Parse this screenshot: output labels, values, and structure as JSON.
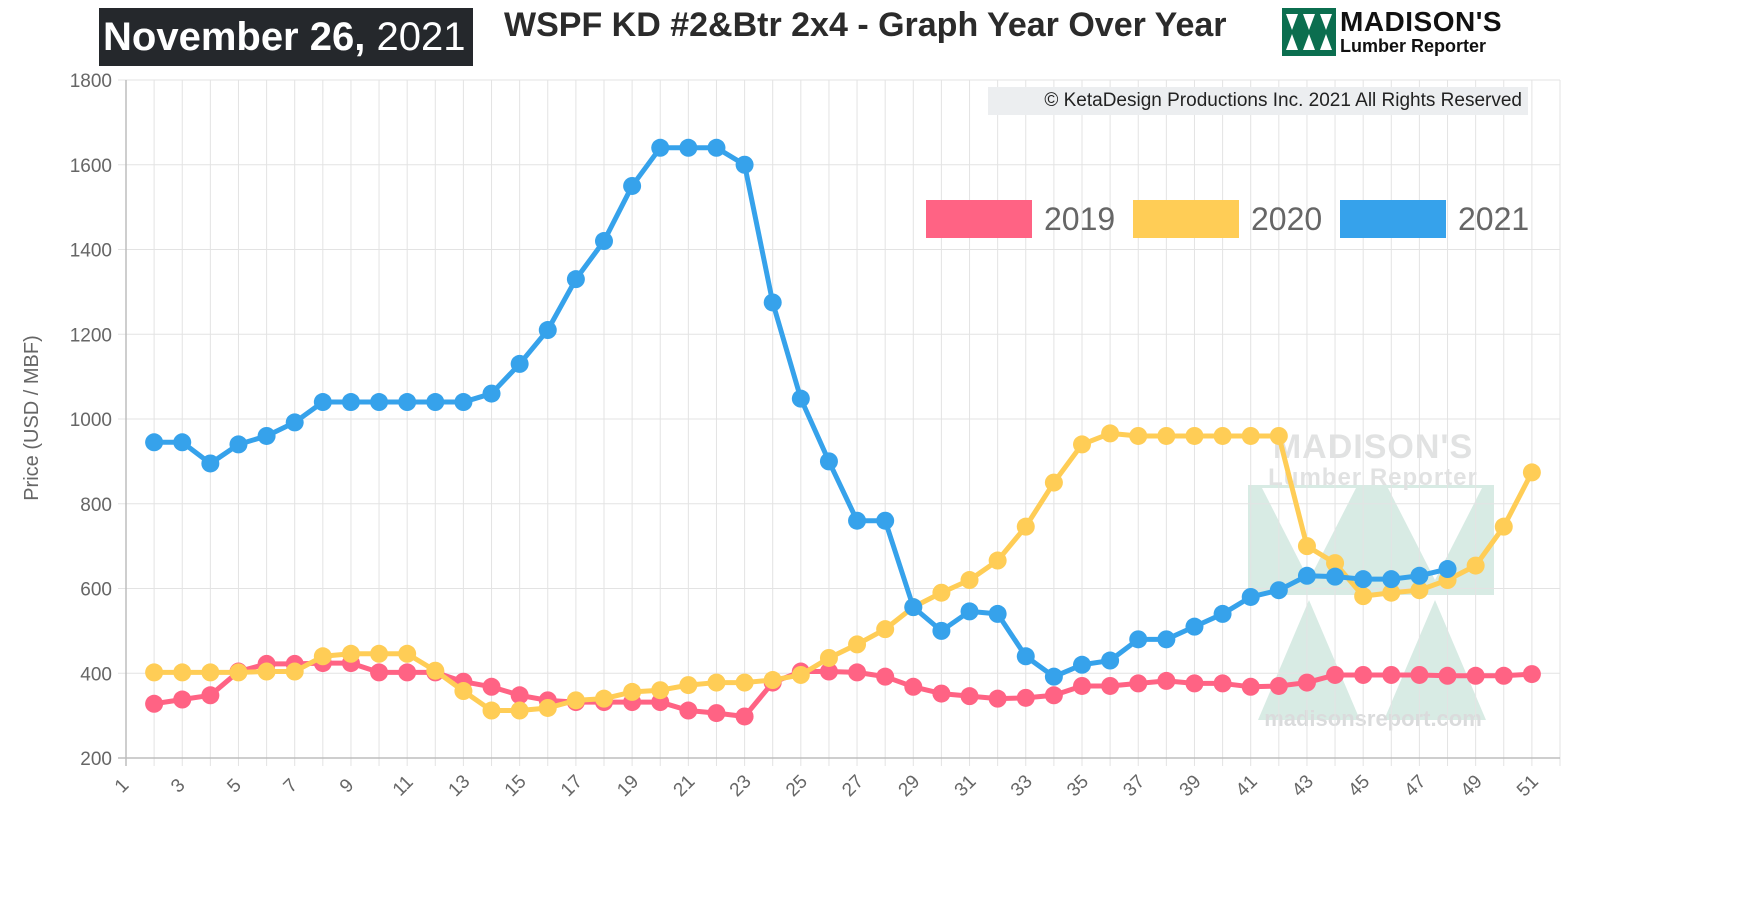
{
  "header": {
    "date_bold": "November 26,",
    "date_year": "2021",
    "title": "WSPF KD #2&Btr 2x4 - Graph Year Over Year",
    "logo_line1": "MADISON'S",
    "logo_line2": "Lumber Reporter",
    "copyright": "© KetaDesign Productions Inc. 2021 All Rights Reserved"
  },
  "watermark": {
    "line1": "MADISON'S",
    "line2": "Lumber Reporter",
    "url": "madisonsreport.com"
  },
  "colors": {
    "s2019": "#ff6384",
    "s2020": "#ffcd56",
    "s2021": "#36a2eb",
    "logo_green": "#0b6e4f",
    "watermark_green": "#b9dccf"
  },
  "chart_data": {
    "type": "line",
    "ylabel": "Price (USD / MBF)",
    "xlabel": "",
    "xlim": [
      1,
      52
    ],
    "ylim": [
      200,
      1800
    ],
    "yticks": [
      200,
      400,
      600,
      800,
      1000,
      1200,
      1400,
      1600,
      1800
    ],
    "xticks": [
      1,
      3,
      5,
      7,
      9,
      11,
      13,
      15,
      17,
      19,
      21,
      23,
      25,
      27,
      29,
      31,
      33,
      35,
      37,
      39,
      41,
      43,
      45,
      47,
      49,
      51
    ],
    "grid": true,
    "legend_position": "top-right",
    "series": [
      {
        "name": "2019",
        "x": [
          2,
          3,
          4,
          5,
          6,
          7,
          8,
          9,
          10,
          11,
          12,
          13,
          14,
          15,
          16,
          17,
          18,
          19,
          20,
          21,
          22,
          23,
          24,
          25,
          26,
          27,
          28,
          29,
          30,
          31,
          32,
          33,
          34,
          35,
          36,
          37,
          38,
          39,
          40,
          41,
          42,
          43,
          44,
          45,
          46,
          47,
          48,
          49,
          50,
          51
        ],
        "values": [
          328,
          338,
          348,
          404,
          422,
          422,
          424,
          424,
          402,
          402,
          402,
          380,
          368,
          348,
          336,
          332,
          332,
          332,
          332,
          312,
          306,
          298,
          378,
          404,
          404,
          402,
          392,
          368,
          352,
          346,
          340,
          342,
          348,
          370,
          370,
          376,
          382,
          376,
          376,
          368,
          370,
          378,
          396,
          396,
          396,
          396,
          394,
          394,
          394,
          398
        ]
      },
      {
        "name": "2020",
        "x": [
          2,
          3,
          4,
          5,
          6,
          7,
          8,
          9,
          10,
          11,
          12,
          13,
          14,
          15,
          16,
          17,
          18,
          19,
          20,
          21,
          22,
          23,
          24,
          25,
          26,
          27,
          28,
          29,
          30,
          31,
          32,
          33,
          34,
          35,
          36,
          37,
          38,
          39,
          40,
          41,
          42,
          43,
          44,
          45,
          46,
          47,
          48,
          49,
          50,
          51
        ],
        "values": [
          402,
          402,
          402,
          402,
          404,
          404,
          440,
          446,
          446,
          446,
          406,
          358,
          312,
          312,
          318,
          336,
          340,
          356,
          360,
          372,
          378,
          378,
          384,
          396,
          436,
          468,
          504,
          556,
          590,
          620,
          666,
          746,
          850,
          940,
          966,
          960,
          960,
          960,
          960,
          960,
          960,
          700,
          660,
          582,
          590,
          596,
          620,
          654,
          746,
          874
        ]
      },
      {
        "name": "2021",
        "x": [
          2,
          3,
          4,
          5,
          6,
          7,
          8,
          9,
          10,
          11,
          12,
          13,
          14,
          15,
          16,
          17,
          18,
          19,
          20,
          21,
          22,
          23,
          24,
          25,
          26,
          27,
          28,
          29,
          30,
          31,
          32,
          33,
          34,
          35,
          36,
          37,
          38,
          39,
          40,
          41,
          42,
          43,
          44,
          45,
          46,
          47,
          48
        ],
        "values": [
          945,
          945,
          895,
          940,
          960,
          992,
          1040,
          1040,
          1040,
          1040,
          1040,
          1040,
          1060,
          1130,
          1210,
          1330,
          1420,
          1550,
          1640,
          1640,
          1640,
          1600,
          1275,
          1048,
          900,
          760,
          760,
          556,
          500,
          546,
          540,
          440,
          392,
          420,
          430,
          480,
          480,
          510,
          540,
          580,
          596,
          630,
          628,
          622,
          622,
          630,
          646
        ]
      }
    ]
  }
}
